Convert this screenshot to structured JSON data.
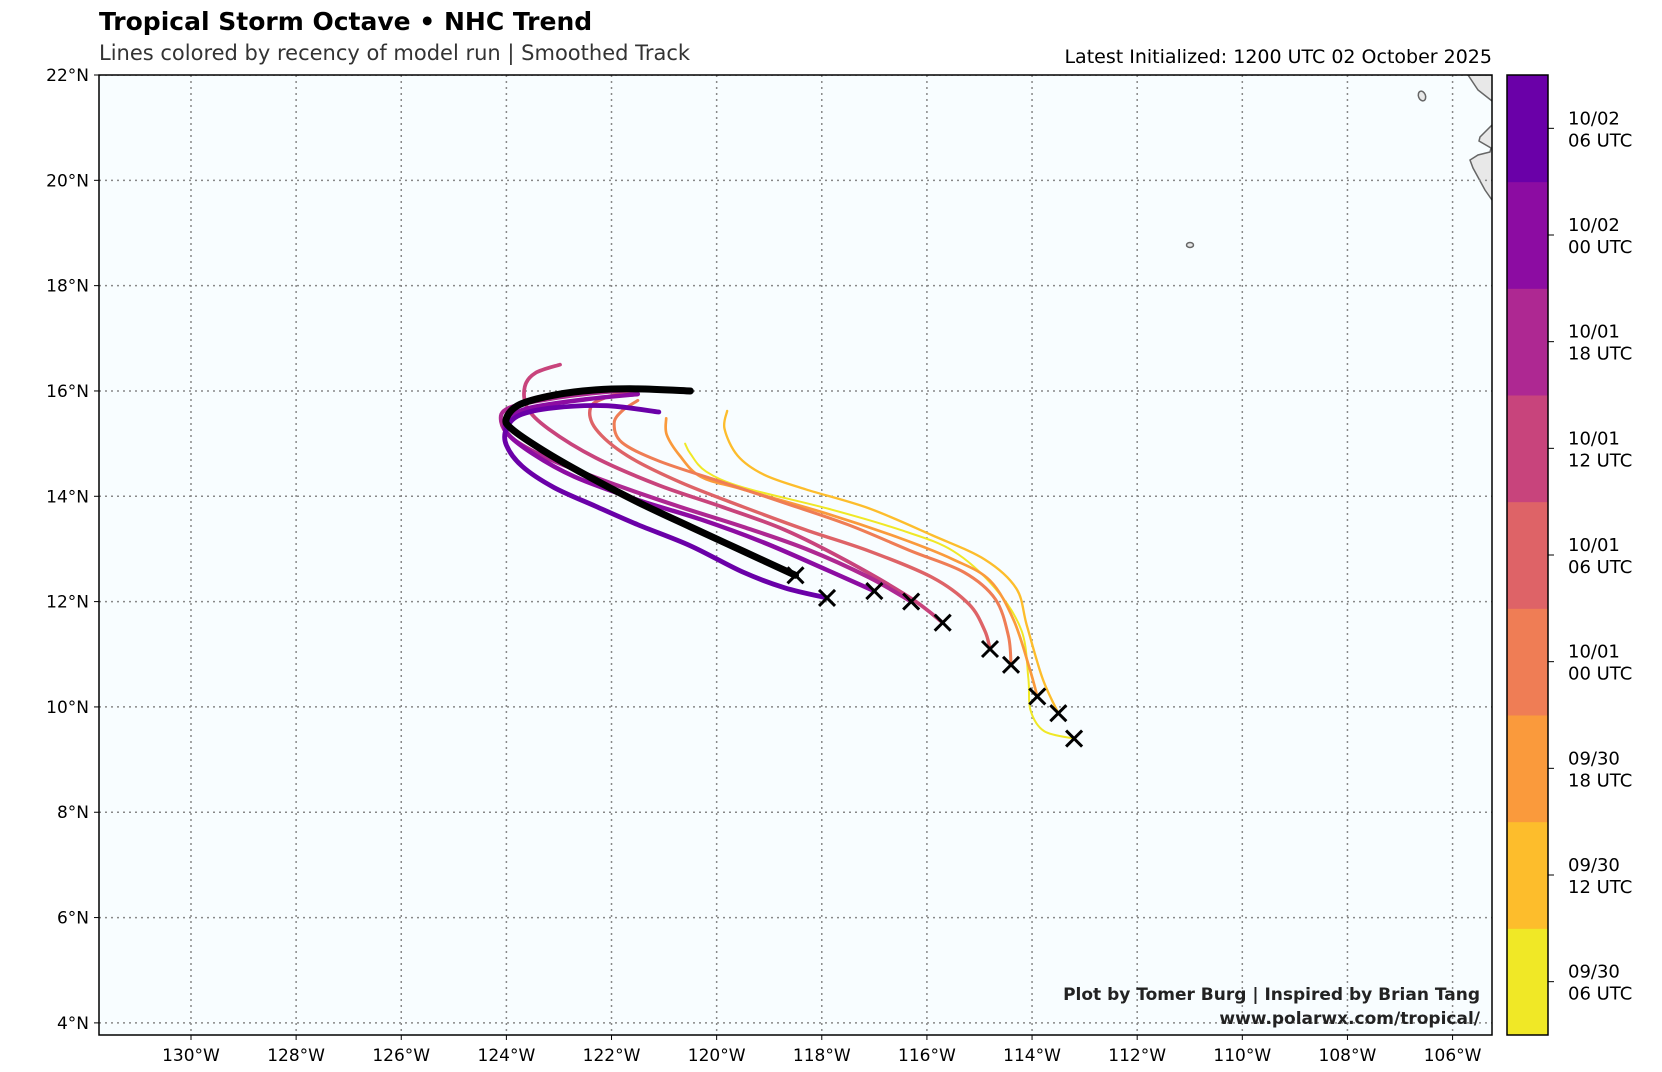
{
  "title": "Tropical Storm Octave • NHC Trend",
  "subtitle": "Lines colored by recency of model run | Smoothed Track",
  "latest_initialized": "Latest Initialized: 1200 UTC 02 October 2025",
  "credit_line1": "Plot by Tomer Burg | Inspired by Brian Tang",
  "credit_line2": "www.polarwx.com/tropical/",
  "chart_data": {
    "type": "line",
    "projection": "map",
    "xlim": [
      -131.75,
      -105.25
    ],
    "ylim": [
      3.77,
      22
    ],
    "grid": true,
    "ocean_color": "#f8fdff",
    "land_color": "#e8e8e8",
    "x_ticks": [
      {
        "value": -130,
        "label": "130°W"
      },
      {
        "value": -128,
        "label": "128°W"
      },
      {
        "value": -126,
        "label": "126°W"
      },
      {
        "value": -124,
        "label": "124°W"
      },
      {
        "value": -122,
        "label": "122°W"
      },
      {
        "value": -120,
        "label": "120°W"
      },
      {
        "value": -118,
        "label": "118°W"
      },
      {
        "value": -116,
        "label": "116°W"
      },
      {
        "value": -114,
        "label": "114°W"
      },
      {
        "value": -112,
        "label": "112°W"
      },
      {
        "value": -110,
        "label": "110°W"
      },
      {
        "value": -108,
        "label": "108°W"
      },
      {
        "value": -106,
        "label": "106°W"
      }
    ],
    "y_ticks": [
      {
        "value": 4,
        "label": "4°N"
      },
      {
        "value": 6,
        "label": "6°N"
      },
      {
        "value": 8,
        "label": "8°N"
      },
      {
        "value": 10,
        "label": "10°N"
      },
      {
        "value": 12,
        "label": "12°N"
      },
      {
        "value": 14,
        "label": "14°N"
      },
      {
        "value": 16,
        "label": "16°N"
      },
      {
        "value": 18,
        "label": "18°N"
      },
      {
        "value": 20,
        "label": "20°N"
      },
      {
        "value": 22,
        "label": "22°N"
      }
    ],
    "colorbar": [
      {
        "line1": "09/30",
        "line2": "06 UTC",
        "color": "#f0e826"
      },
      {
        "line1": "09/30",
        "line2": "12 UTC",
        "color": "#fdbd2c"
      },
      {
        "line1": "09/30",
        "line2": "18 UTC",
        "color": "#fa9a3c"
      },
      {
        "line1": "10/01",
        "line2": "00 UTC",
        "color": "#ef7d55"
      },
      {
        "line1": "10/01",
        "line2": "06 UTC",
        "color": "#de6367"
      },
      {
        "line1": "10/01",
        "line2": "12 UTC",
        "color": "#c8447c"
      },
      {
        "line1": "10/01",
        "line2": "18 UTC",
        "color": "#ae2892"
      },
      {
        "line1": "10/02",
        "line2": "00 UTC",
        "color": "#8c0ca2"
      },
      {
        "line1": "10/02",
        "line2": "06 UTC",
        "color": "#6a00a8"
      }
    ],
    "series": [
      {
        "run": "09/30 06 UTC",
        "color": "#f0e826",
        "points": [
          [
            -113.2,
            9.4
          ],
          [
            -113.77,
            9.54
          ],
          [
            -114.03,
            9.94
          ],
          [
            -114.07,
            10.54
          ],
          [
            -114.2,
            11.45
          ],
          [
            -114.7,
            12.25
          ],
          [
            -115.5,
            12.96
          ],
          [
            -116.5,
            13.36
          ],
          [
            -117.9,
            13.77
          ],
          [
            -119.5,
            14.17
          ],
          [
            -120.2,
            14.47
          ],
          [
            -120.5,
            14.81
          ],
          [
            -120.6,
            15.0
          ]
        ]
      },
      {
        "run": "09/30 12 UTC",
        "color": "#fdbd2c",
        "points": [
          [
            -113.5,
            9.88
          ],
          [
            -113.8,
            10.54
          ],
          [
            -114.1,
            11.55
          ],
          [
            -114.3,
            12.25
          ],
          [
            -114.9,
            12.8
          ],
          [
            -115.9,
            13.26
          ],
          [
            -117.1,
            13.77
          ],
          [
            -118.3,
            14.13
          ],
          [
            -119.1,
            14.41
          ],
          [
            -119.6,
            14.77
          ],
          [
            -119.85,
            15.28
          ],
          [
            -119.8,
            15.62
          ]
        ]
      },
      {
        "run": "09/30 18 UTC",
        "color": "#fa9a3c",
        "points": [
          [
            -113.9,
            10.2
          ],
          [
            -114.05,
            10.74
          ],
          [
            -114.35,
            11.65
          ],
          [
            -114.8,
            12.4
          ],
          [
            -115.5,
            12.8
          ],
          [
            -116.5,
            13.2
          ],
          [
            -117.9,
            13.67
          ],
          [
            -119.5,
            14.13
          ],
          [
            -120.3,
            14.37
          ],
          [
            -120.7,
            14.77
          ],
          [
            -120.95,
            15.17
          ],
          [
            -120.96,
            15.48
          ]
        ]
      },
      {
        "run": "10/01 00 UTC",
        "color": "#ef7d55",
        "points": [
          [
            -114.4,
            10.8
          ],
          [
            -114.45,
            11.35
          ],
          [
            -114.7,
            12.05
          ],
          [
            -115.3,
            12.56
          ],
          [
            -116.3,
            12.96
          ],
          [
            -117.5,
            13.46
          ],
          [
            -118.7,
            13.87
          ],
          [
            -119.9,
            14.27
          ],
          [
            -121.1,
            14.67
          ],
          [
            -121.8,
            15.02
          ],
          [
            -121.95,
            15.38
          ],
          [
            -121.8,
            15.62
          ],
          [
            -121.5,
            15.82
          ]
        ]
      },
      {
        "run": "10/01 06 UTC",
        "color": "#de6367",
        "points": [
          [
            -114.8,
            11.1
          ],
          [
            -114.9,
            11.45
          ],
          [
            -115.2,
            11.95
          ],
          [
            -115.9,
            12.46
          ],
          [
            -117.1,
            12.96
          ],
          [
            -118.3,
            13.36
          ],
          [
            -119.5,
            13.8
          ],
          [
            -120.7,
            14.27
          ],
          [
            -121.7,
            14.77
          ],
          [
            -122.3,
            15.28
          ],
          [
            -122.4,
            15.68
          ],
          [
            -122.1,
            15.88
          ],
          [
            -121.5,
            16.02
          ]
        ]
      },
      {
        "run": "10/01 12 UTC",
        "color": "#c8447c",
        "points": [
          [
            -115.7,
            11.6
          ],
          [
            -116.3,
            12.06
          ],
          [
            -117.5,
            12.76
          ],
          [
            -118.7,
            13.36
          ],
          [
            -119.9,
            13.8
          ],
          [
            -121.1,
            14.21
          ],
          [
            -122.3,
            14.73
          ],
          [
            -123.2,
            15.28
          ],
          [
            -123.6,
            15.68
          ],
          [
            -123.65,
            16.08
          ],
          [
            -123.45,
            16.34
          ],
          [
            -122.98,
            16.5
          ]
        ]
      },
      {
        "run": "10/01 18 UTC",
        "color": "#ae2892",
        "points": [
          [
            -116.3,
            12.0
          ],
          [
            -117.1,
            12.46
          ],
          [
            -118.3,
            13.0
          ],
          [
            -119.5,
            13.42
          ],
          [
            -120.7,
            13.8
          ],
          [
            -121.9,
            14.21
          ],
          [
            -123.1,
            14.67
          ],
          [
            -123.85,
            15.07
          ],
          [
            -124.1,
            15.42
          ],
          [
            -123.95,
            15.68
          ],
          [
            -123.1,
            15.86
          ],
          [
            -122.1,
            15.98
          ],
          [
            -121.4,
            16.02
          ]
        ]
      },
      {
        "run": "10/02 00 UTC",
        "color": "#8c0ca2",
        "points": [
          [
            -117.0,
            12.2
          ],
          [
            -117.9,
            12.6
          ],
          [
            -119.1,
            13.12
          ],
          [
            -120.3,
            13.56
          ],
          [
            -121.5,
            13.93
          ],
          [
            -122.7,
            14.37
          ],
          [
            -123.5,
            14.81
          ],
          [
            -124.0,
            15.22
          ],
          [
            -123.95,
            15.48
          ],
          [
            -123.55,
            15.68
          ],
          [
            -122.5,
            15.84
          ],
          [
            -121.5,
            15.94
          ]
        ]
      },
      {
        "run": "10/02 06 UTC",
        "color": "#6a00a8",
        "points": [
          [
            -117.9,
            12.07
          ],
          [
            -118.7,
            12.26
          ],
          [
            -119.5,
            12.56
          ],
          [
            -120.5,
            13.06
          ],
          [
            -121.5,
            13.46
          ],
          [
            -122.3,
            13.81
          ],
          [
            -123.1,
            14.17
          ],
          [
            -123.7,
            14.57
          ],
          [
            -124.0,
            14.97
          ],
          [
            -124.0,
            15.28
          ],
          [
            -123.75,
            15.54
          ],
          [
            -123.1,
            15.68
          ],
          [
            -122.1,
            15.72
          ],
          [
            -121.1,
            15.6
          ]
        ]
      },
      {
        "run": "10/02 12 UTC",
        "color": "#000000",
        "points": [
          [
            -118.5,
            12.5
          ],
          [
            -119.5,
            12.96
          ],
          [
            -120.5,
            13.42
          ],
          [
            -121.5,
            13.89
          ],
          [
            -122.5,
            14.41
          ],
          [
            -123.3,
            14.87
          ],
          [
            -123.9,
            15.28
          ],
          [
            -124.0,
            15.48
          ],
          [
            -123.75,
            15.74
          ],
          [
            -123.1,
            15.92
          ],
          [
            -122.3,
            16.02
          ],
          [
            -121.5,
            16.04
          ],
          [
            -120.5,
            16.0
          ]
        ]
      }
    ]
  }
}
